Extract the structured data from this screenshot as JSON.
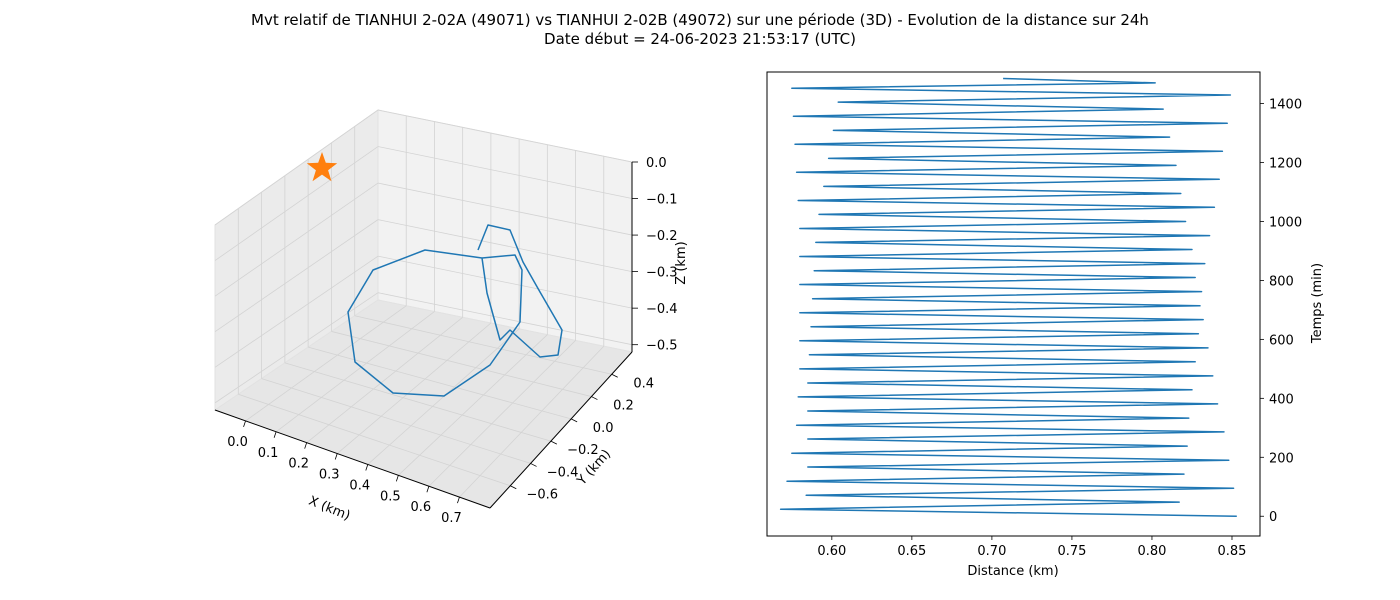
{
  "figure": {
    "title_line1": "Mvt relatif de TIANHUI 2-02A (49071) vs TIANHUI 2-02B (49072) sur une période (3D) - Evolution de la distance sur 24h",
    "title_line2": "Date début = 24-06-2023 21:53:17 (UTC)"
  },
  "colors": {
    "series": "#1f77b4",
    "marker": "#ff7f0e",
    "pane": "#f2f2f2",
    "grid": "#d3d3d3"
  },
  "chart_data": [
    {
      "type": "line3d",
      "xlabel": "X (km)",
      "ylabel": "Y (km)",
      "zlabel": "Z (km)",
      "xlim": [
        -0.03,
        0.75
      ],
      "ylim": [
        -0.65,
        0.5
      ],
      "zlim": [
        -0.52,
        0.0
      ],
      "xticks": [
        "0.0",
        "0.1",
        "0.2",
        "0.3",
        "0.4",
        "0.5",
        "0.6",
        "0.7"
      ],
      "yticks": [
        "−0.6",
        "−0.4",
        "−0.2",
        "0.0",
        "0.2",
        "0.4"
      ],
      "zticks": [
        "0.0",
        "−0.1",
        "−0.2",
        "−0.3",
        "−0.4",
        "−0.5"
      ],
      "grid": true,
      "marker": {
        "symbol": "star",
        "x": 0.0,
        "y": 0.0,
        "z": 0.0
      },
      "trajectory_estimated": [
        [
          0.43,
          0.28,
          -0.15
        ],
        [
          0.5,
          0.3,
          -0.22
        ],
        [
          0.54,
          0.25,
          -0.35
        ],
        [
          0.5,
          0.15,
          -0.47
        ],
        [
          0.4,
          -0.05,
          -0.52
        ],
        [
          0.3,
          -0.25,
          -0.49
        ],
        [
          0.27,
          -0.5,
          -0.41
        ],
        [
          0.32,
          -0.62,
          -0.31
        ],
        [
          0.4,
          -0.55,
          -0.22
        ],
        [
          0.5,
          -0.3,
          -0.15
        ],
        [
          0.58,
          -0.05,
          -0.15
        ],
        [
          0.65,
          0.2,
          -0.22
        ],
        [
          0.7,
          0.3,
          -0.32
        ],
        [
          0.68,
          0.15,
          -0.4
        ],
        [
          0.6,
          -0.05,
          -0.38
        ],
        [
          0.5,
          0.1,
          -0.28
        ],
        [
          0.43,
          0.28,
          -0.15
        ]
      ]
    },
    {
      "type": "line",
      "xlabel": "Distance (km)",
      "ylabel": "Temps (min)",
      "xlim": [
        0.5595,
        0.8675
      ],
      "ylim": [
        -67,
        1507
      ],
      "xticks": [
        "0.60",
        "0.65",
        "0.70",
        "0.75",
        "0.80",
        "0.85"
      ],
      "yticks": [
        "0",
        "200",
        "400",
        "600",
        "800",
        "1000",
        "1200",
        "1400"
      ],
      "x": [
        0.853,
        0.568,
        0.817,
        0.584,
        0.851,
        0.572,
        0.82,
        0.585,
        0.848,
        0.575,
        0.822,
        0.585,
        0.845,
        0.578,
        0.823,
        0.585,
        0.841,
        0.579,
        0.825,
        0.585,
        0.838,
        0.58,
        0.827,
        0.586,
        0.835,
        0.58,
        0.829,
        0.587,
        0.832,
        0.58,
        0.83,
        0.588,
        0.831,
        0.58,
        0.827,
        0.589,
        0.833,
        0.58,
        0.825,
        0.59,
        0.836,
        0.58,
        0.821,
        0.592,
        0.839,
        0.579,
        0.818,
        0.595,
        0.842,
        0.578,
        0.815,
        0.598,
        0.844,
        0.577,
        0.811,
        0.601,
        0.847,
        0.576,
        0.807,
        0.604,
        0.849,
        0.575,
        0.802,
        0.707
      ],
      "y": [
        0,
        24,
        48,
        71,
        95,
        119,
        143,
        167,
        190,
        214,
        238,
        262,
        286,
        309,
        333,
        357,
        381,
        405,
        429,
        452,
        476,
        500,
        524,
        548,
        571,
        595,
        619,
        643,
        667,
        690,
        714,
        738,
        762,
        786,
        810,
        833,
        857,
        881,
        905,
        929,
        952,
        976,
        1000,
        1024,
        1048,
        1071,
        1095,
        1119,
        1143,
        1167,
        1190,
        1214,
        1238,
        1262,
        1286,
        1309,
        1333,
        1357,
        1381,
        1405,
        1429,
        1452,
        1470,
        1485
      ]
    }
  ]
}
